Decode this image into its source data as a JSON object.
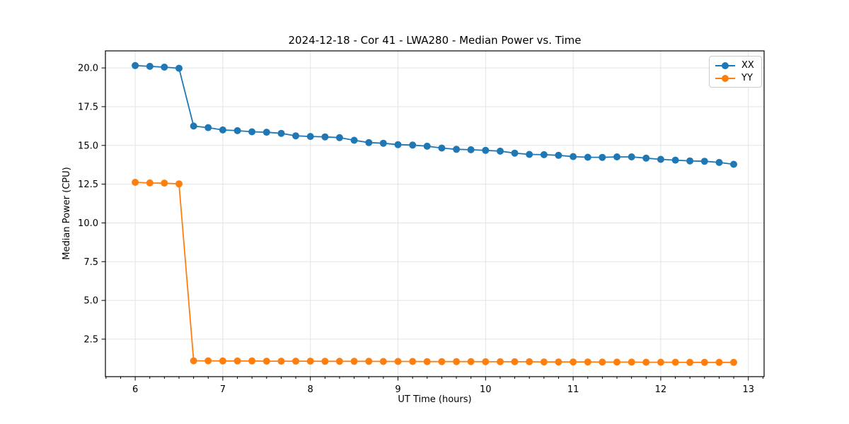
{
  "figure": {
    "background": "#ffffff"
  },
  "colors": {
    "grid": "#e3e3e3",
    "spine": "#000000",
    "legend_border": "#cccccc",
    "series_xx": "#1f77b4",
    "series_yy": "#ff7f0e"
  },
  "chart_data": {
    "type": "line",
    "title": "2024-12-18 - Cor 41 - LWA280 - Median Power vs. Time",
    "xlabel": "UT Time (hours)",
    "ylabel": "Median Power (CPU)",
    "xlim": [
      5.66,
      13.18
    ],
    "ylim": [
      0.08,
      21.1
    ],
    "xticks": [
      6,
      7,
      8,
      9,
      10,
      11,
      12,
      13
    ],
    "yticks": [
      2.5,
      5.0,
      7.5,
      10.0,
      12.5,
      15.0,
      17.5,
      20.0
    ],
    "ytick_labels": [
      "2.5",
      "5.0",
      "7.5",
      "10.0",
      "12.5",
      "15.0",
      "17.5",
      "20.0"
    ],
    "minor_tick_step_hours": 0.1666667,
    "grid": true,
    "legend_position": "upper right",
    "x": [
      6.0,
      6.167,
      6.333,
      6.5,
      6.667,
      6.833,
      7.0,
      7.167,
      7.333,
      7.5,
      7.667,
      7.833,
      8.0,
      8.167,
      8.333,
      8.5,
      8.667,
      8.833,
      9.0,
      9.167,
      9.333,
      9.5,
      9.667,
      9.833,
      10.0,
      10.167,
      10.333,
      10.5,
      10.667,
      10.833,
      11.0,
      11.167,
      11.333,
      11.5,
      11.667,
      11.833,
      12.0,
      12.167,
      12.333,
      12.5,
      12.667,
      12.833
    ],
    "series": [
      {
        "name": "XX",
        "color": "#1f77b4",
        "values": [
          20.15,
          20.1,
          20.05,
          19.98,
          16.25,
          16.15,
          16.0,
          15.95,
          15.88,
          15.85,
          15.78,
          15.62,
          15.58,
          15.55,
          15.5,
          15.33,
          15.18,
          15.14,
          15.05,
          15.02,
          14.95,
          14.83,
          14.75,
          14.72,
          14.68,
          14.63,
          14.5,
          14.42,
          14.4,
          14.36,
          14.28,
          14.24,
          14.23,
          14.26,
          14.26,
          14.18,
          14.1,
          14.05,
          14.0,
          13.98,
          13.9,
          13.78
        ]
      },
      {
        "name": "YY",
        "color": "#ff7f0e",
        "values": [
          12.62,
          12.58,
          12.57,
          12.52,
          1.1,
          1.1,
          1.09,
          1.09,
          1.09,
          1.08,
          1.08,
          1.08,
          1.08,
          1.07,
          1.07,
          1.07,
          1.07,
          1.06,
          1.06,
          1.06,
          1.05,
          1.05,
          1.05,
          1.05,
          1.04,
          1.04,
          1.04,
          1.04,
          1.03,
          1.03,
          1.03,
          1.03,
          1.02,
          1.02,
          1.02,
          1.01,
          1.01,
          1.01,
          1.0,
          1.0,
          1.0,
          1.0
        ]
      }
    ]
  }
}
